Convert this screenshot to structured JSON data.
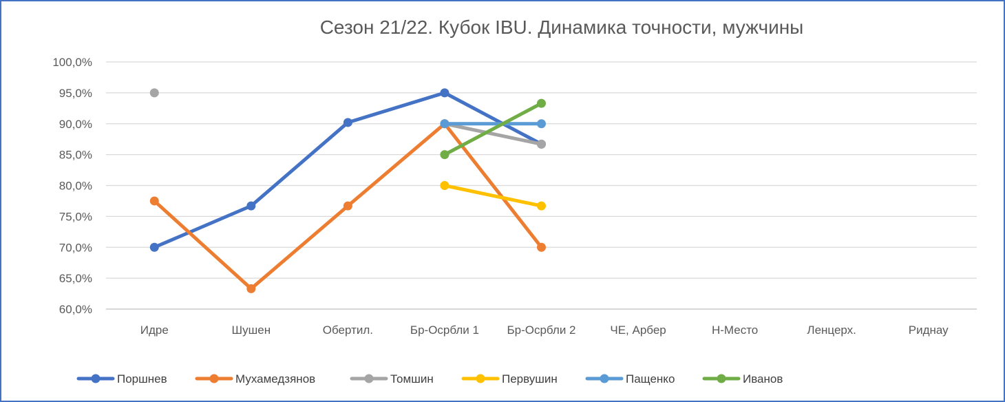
{
  "chart_data": {
    "type": "line",
    "title": "Сезон 21/22. Кубок IBU. Динамика точности, мужчины",
    "xlabel": "",
    "ylabel": "",
    "categories": [
      "Идре",
      "Шушен",
      "Обертил.",
      "Бр-Осрбли 1",
      "Бр-Осрбли 2",
      "ЧЕ, Арбер",
      "Н-Место",
      "Ленцерх.",
      "Риднау"
    ],
    "ylim": [
      60,
      100
    ],
    "yticks": [
      60,
      65,
      70,
      75,
      80,
      85,
      90,
      95,
      100
    ],
    "ytick_labels": [
      "60,0%",
      "65,0%",
      "70,0%",
      "75,0%",
      "80,0%",
      "85,0%",
      "90,0%",
      "95,0%",
      "100,0%"
    ],
    "grid": true,
    "legend_position": "bottom",
    "series": [
      {
        "name": "Поршнев",
        "color": "#4472c4",
        "values": [
          70.0,
          76.7,
          90.2,
          95.0,
          86.7,
          null,
          null,
          null,
          null
        ]
      },
      {
        "name": "Мухамедзянов",
        "color": "#ed7d31",
        "values": [
          77.5,
          63.3,
          76.7,
          90.0,
          70.0,
          null,
          null,
          null,
          null
        ]
      },
      {
        "name": "Томшин",
        "color": "#a5a5a5",
        "values": [
          95.0,
          null,
          null,
          90.0,
          86.7,
          null,
          null,
          null,
          null
        ]
      },
      {
        "name": "Первушин",
        "color": "#ffc000",
        "values": [
          null,
          null,
          null,
          80.0,
          76.7,
          null,
          null,
          null,
          null
        ]
      },
      {
        "name": "Пащенко",
        "color": "#5b9bd5",
        "values": [
          null,
          null,
          null,
          90.0,
          90.0,
          null,
          null,
          null,
          null
        ]
      },
      {
        "name": "Иванов",
        "color": "#70ad47",
        "values": [
          null,
          null,
          null,
          85.0,
          93.3,
          null,
          null,
          null,
          null
        ]
      }
    ]
  }
}
